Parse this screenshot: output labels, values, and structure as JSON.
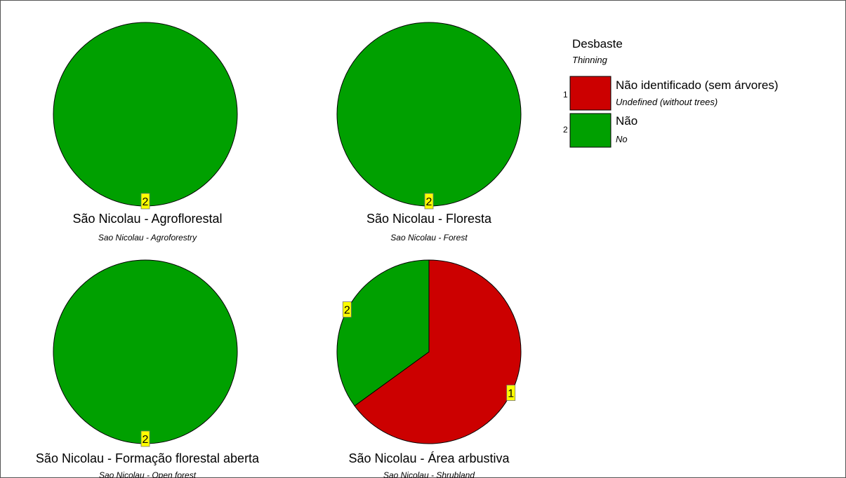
{
  "chart_data": {
    "type": "pie",
    "legend": {
      "title": "Desbaste",
      "subtitle": "Thinning",
      "placement": "top-right",
      "entries": [
        {
          "code": "1",
          "label": "Não identificado (sem árvores)",
          "sublabel": "Undefined (without trees)",
          "color": "#cc0000"
        },
        {
          "code": "2",
          "label": "Não",
          "sublabel": "No",
          "color": "#00a000"
        }
      ]
    },
    "pies": [
      {
        "title": "São Nicolau - Agroflorestal",
        "subtitle": "Sao Nicolau - Agroforestry",
        "slices": [
          {
            "category": "2",
            "value": 100
          }
        ]
      },
      {
        "title": "São Nicolau - Floresta",
        "subtitle": "Sao Nicolau - Forest",
        "slices": [
          {
            "category": "2",
            "value": 100
          }
        ]
      },
      {
        "title": "São Nicolau - Formação florestal aberta",
        "subtitle": "Sao Nicolau - Open forest",
        "slices": [
          {
            "category": "2",
            "value": 100
          }
        ]
      },
      {
        "title": "São Nicolau - Área arbustiva",
        "subtitle": "Sao Nicolau - Shrubland",
        "slices": [
          {
            "category": "1",
            "value": 65
          },
          {
            "category": "2",
            "value": 35
          }
        ]
      }
    ]
  }
}
